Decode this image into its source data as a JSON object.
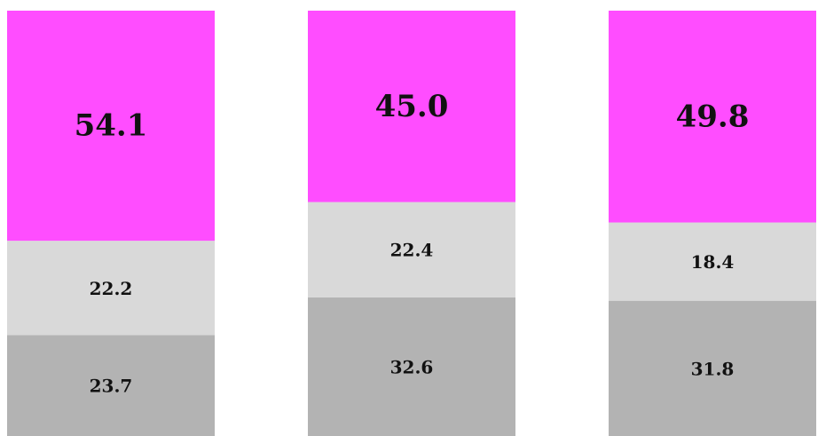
{
  "chart_data": {
    "type": "stacked_bar",
    "categories": [
      null,
      null,
      null
    ],
    "series": [
      {
        "color": "#b3b3b3",
        "values": [
          23.7,
          32.6,
          31.8
        ],
        "value_labels": [
          "23.7",
          "32.6",
          "31.8"
        ]
      },
      {
        "color": "#d9d9d9",
        "values": [
          22.2,
          22.4,
          18.4
        ],
        "value_labels": [
          "22.2",
          "22.4",
          "18.4"
        ]
      },
      {
        "color": "#ff4dff",
        "values": [
          54.1,
          45.0,
          49.8
        ],
        "value_labels": [
          "54.1",
          "45.0",
          "49.8"
        ]
      }
    ],
    "ylim": [
      0,
      100
    ]
  }
}
